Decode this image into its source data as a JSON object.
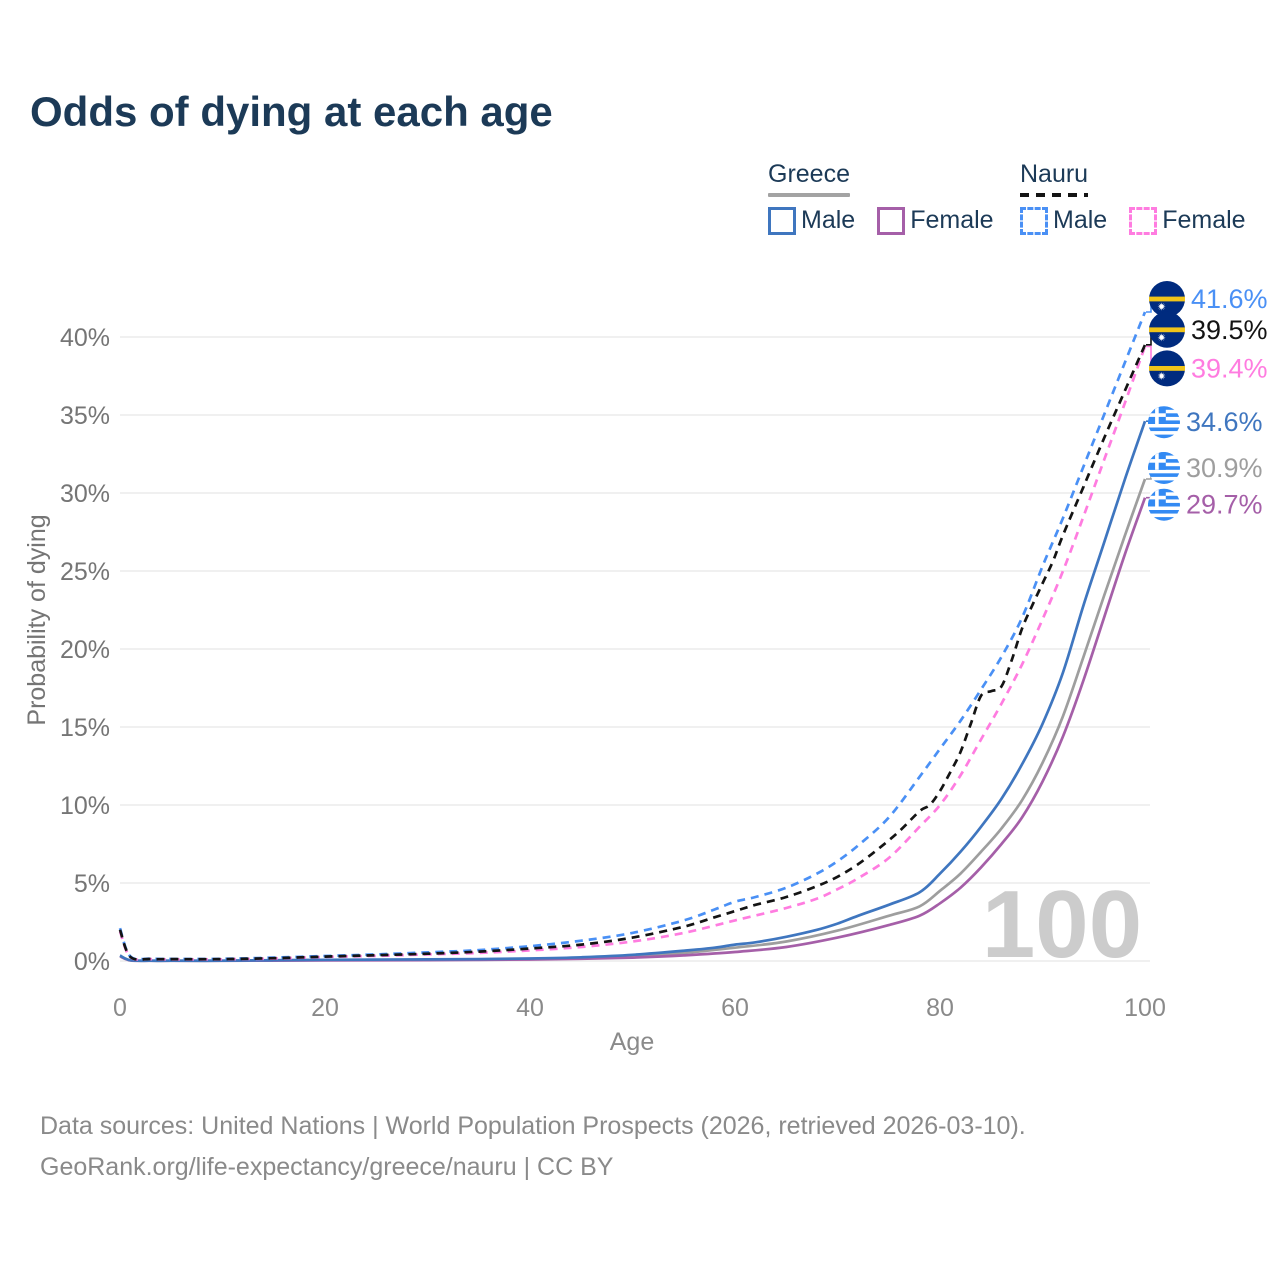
{
  "title": "Odds of dying at each age",
  "watermark": "100",
  "legend": {
    "groups": [
      {
        "label": "Greece",
        "underline_style": "solid",
        "underline_color": "#a3a3a3",
        "items": [
          {
            "label": "Male",
            "color": "#3f76bf",
            "dash": false
          },
          {
            "label": "Female",
            "color": "#a55fa8",
            "dash": false
          }
        ]
      },
      {
        "label": "Nauru",
        "underline_style": "dashed",
        "underline_color": "#141414",
        "items": [
          {
            "label": "Male",
            "color": "#4a90f5",
            "dash": true
          },
          {
            "label": "Female",
            "color": "#ff7ce0",
            "dash": true
          }
        ]
      }
    ]
  },
  "footer": {
    "line1": "Data sources: United Nations | World Population Prospects (2026, retrieved 2026-03-10).",
    "line2": "GeoRank.org/life-expectancy/greece/nauru | CC BY"
  },
  "chart_data": {
    "type": "line",
    "title": "Odds of dying at each age",
    "xlabel": "Age",
    "ylabel": "Probability of dying",
    "xlim": [
      0,
      100
    ],
    "ylim_percent": [
      0,
      43
    ],
    "grid": true,
    "legend_position": "top-right",
    "x_ticks": [
      0,
      20,
      40,
      60,
      80,
      100
    ],
    "y_ticks": [
      {
        "v": 0,
        "label": "0%"
      },
      {
        "v": 5,
        "label": "5%"
      },
      {
        "v": 10,
        "label": "10%"
      },
      {
        "v": 15,
        "label": "15%"
      },
      {
        "v": 20,
        "label": "20%"
      },
      {
        "v": 25,
        "label": "25%"
      },
      {
        "v": 30,
        "label": "30%"
      },
      {
        "v": 35,
        "label": "35%"
      },
      {
        "v": 40,
        "label": "40%"
      }
    ],
    "series": [
      {
        "id": "greece-combined",
        "name": "Greece (both sexes)",
        "color": "#9e9e9e",
        "dash": false,
        "end_label": "30.9%",
        "flag": "greece",
        "points": [
          [
            0,
            0.33
          ],
          [
            1,
            0.045
          ],
          [
            3,
            0.018
          ],
          [
            5,
            0.018
          ],
          [
            10,
            0.018
          ],
          [
            15,
            0.04
          ],
          [
            20,
            0.06
          ],
          [
            25,
            0.07
          ],
          [
            30,
            0.08
          ],
          [
            35,
            0.1
          ],
          [
            40,
            0.13
          ],
          [
            45,
            0.19
          ],
          [
            50,
            0.31
          ],
          [
            55,
            0.52
          ],
          [
            60,
            0.85
          ],
          [
            65,
            1.25
          ],
          [
            70,
            1.95
          ],
          [
            75,
            2.9
          ],
          [
            78,
            3.5
          ],
          [
            80,
            4.5
          ],
          [
            82,
            5.6
          ],
          [
            84,
            7.0
          ],
          [
            86,
            8.5
          ],
          [
            88,
            10.3
          ],
          [
            90,
            12.7
          ],
          [
            92,
            15.7
          ],
          [
            94,
            19.5
          ],
          [
            96,
            23.4
          ],
          [
            98,
            27.2
          ],
          [
            100,
            30.9
          ]
        ]
      },
      {
        "id": "greece-female",
        "name": "Greece Female",
        "color": "#a55fa8",
        "dash": false,
        "end_label": "29.7%",
        "flag": "greece",
        "points": [
          [
            0,
            0.3
          ],
          [
            1,
            0.04
          ],
          [
            3,
            0.015
          ],
          [
            5,
            0.015
          ],
          [
            10,
            0.015
          ],
          [
            15,
            0.025
          ],
          [
            20,
            0.04
          ],
          [
            25,
            0.045
          ],
          [
            30,
            0.055
          ],
          [
            35,
            0.07
          ],
          [
            40,
            0.095
          ],
          [
            45,
            0.14
          ],
          [
            50,
            0.22
          ],
          [
            55,
            0.36
          ],
          [
            60,
            0.58
          ],
          [
            65,
            0.9
          ],
          [
            70,
            1.5
          ],
          [
            75,
            2.3
          ],
          [
            78,
            2.9
          ],
          [
            80,
            3.7
          ],
          [
            82,
            4.7
          ],
          [
            84,
            6.0
          ],
          [
            86,
            7.5
          ],
          [
            88,
            9.2
          ],
          [
            90,
            11.5
          ],
          [
            92,
            14.4
          ],
          [
            94,
            18.0
          ],
          [
            96,
            22.0
          ],
          [
            98,
            26.0
          ],
          [
            100,
            29.7
          ]
        ]
      },
      {
        "id": "greece-male",
        "name": "Greece Male",
        "color": "#3f76bf",
        "dash": false,
        "end_label": "34.6%",
        "flag": "greece",
        "points": [
          [
            0,
            0.35
          ],
          [
            1,
            0.05
          ],
          [
            3,
            0.02
          ],
          [
            5,
            0.02
          ],
          [
            10,
            0.02
          ],
          [
            15,
            0.05
          ],
          [
            20,
            0.08
          ],
          [
            25,
            0.09
          ],
          [
            30,
            0.1
          ],
          [
            35,
            0.12
          ],
          [
            40,
            0.16
          ],
          [
            45,
            0.24
          ],
          [
            50,
            0.4
          ],
          [
            55,
            0.66
          ],
          [
            58,
            0.85
          ],
          [
            60,
            1.05
          ],
          [
            62,
            1.2
          ],
          [
            65,
            1.55
          ],
          [
            68,
            2.0
          ],
          [
            70,
            2.4
          ],
          [
            72,
            2.9
          ],
          [
            75,
            3.6
          ],
          [
            78,
            4.4
          ],
          [
            80,
            5.6
          ],
          [
            82,
            7.0
          ],
          [
            84,
            8.6
          ],
          [
            86,
            10.4
          ],
          [
            88,
            12.6
          ],
          [
            90,
            15.2
          ],
          [
            92,
            18.5
          ],
          [
            94,
            22.8
          ],
          [
            96,
            26.8
          ],
          [
            98,
            30.8
          ],
          [
            100,
            34.6
          ]
        ]
      },
      {
        "id": "nauru-female",
        "name": "Nauru Female",
        "color": "#ff7ce0",
        "dash": true,
        "end_label": "39.4%",
        "flag": "nauru",
        "points": [
          [
            0,
            1.9
          ],
          [
            1,
            0.25
          ],
          [
            3,
            0.12
          ],
          [
            5,
            0.1
          ],
          [
            10,
            0.11
          ],
          [
            15,
            0.16
          ],
          [
            20,
            0.26
          ],
          [
            25,
            0.33
          ],
          [
            30,
            0.42
          ],
          [
            35,
            0.52
          ],
          [
            40,
            0.68
          ],
          [
            45,
            0.9
          ],
          [
            50,
            1.25
          ],
          [
            55,
            1.8
          ],
          [
            60,
            2.6
          ],
          [
            65,
            3.4
          ],
          [
            68,
            4.0
          ],
          [
            70,
            4.6
          ],
          [
            72,
            5.3
          ],
          [
            75,
            6.6
          ],
          [
            78,
            8.6
          ],
          [
            80,
            10.0
          ],
          [
            82,
            11.9
          ],
          [
            84,
            14.2
          ],
          [
            86,
            16.5
          ],
          [
            88,
            19.0
          ],
          [
            90,
            21.9
          ],
          [
            92,
            25.0
          ],
          [
            94,
            28.5
          ],
          [
            96,
            32.1
          ],
          [
            98,
            35.7
          ],
          [
            100,
            39.4
          ]
        ]
      },
      {
        "id": "nauru-male",
        "name": "Nauru Male",
        "color": "#4a90f5",
        "dash": true,
        "end_label": "41.6%",
        "flag": "nauru",
        "points": [
          [
            0,
            2.1
          ],
          [
            1,
            0.3
          ],
          [
            3,
            0.15
          ],
          [
            5,
            0.13
          ],
          [
            10,
            0.14
          ],
          [
            15,
            0.22
          ],
          [
            20,
            0.32
          ],
          [
            25,
            0.42
          ],
          [
            30,
            0.55
          ],
          [
            35,
            0.7
          ],
          [
            40,
            0.95
          ],
          [
            45,
            1.3
          ],
          [
            50,
            1.8
          ],
          [
            55,
            2.6
          ],
          [
            58,
            3.3
          ],
          [
            60,
            3.8
          ],
          [
            62,
            4.1
          ],
          [
            65,
            4.7
          ],
          [
            68,
            5.6
          ],
          [
            70,
            6.4
          ],
          [
            72,
            7.4
          ],
          [
            75,
            9.2
          ],
          [
            78,
            11.8
          ],
          [
            80,
            13.6
          ],
          [
            82,
            15.4
          ],
          [
            84,
            17.4
          ],
          [
            86,
            19.5
          ],
          [
            88,
            22.0
          ],
          [
            90,
            25.3
          ],
          [
            92,
            28.4
          ],
          [
            94,
            31.7
          ],
          [
            96,
            35.0
          ],
          [
            98,
            38.3
          ],
          [
            100,
            41.6
          ]
        ]
      },
      {
        "id": "nauru-combined",
        "name": "Nauru (both sexes)",
        "color": "#141414",
        "dash": true,
        "end_label": "39.5%",
        "flag": "nauru",
        "points": [
          [
            0,
            2.0
          ],
          [
            1,
            0.27
          ],
          [
            3,
            0.13
          ],
          [
            5,
            0.12
          ],
          [
            10,
            0.12
          ],
          [
            15,
            0.18
          ],
          [
            20,
            0.28
          ],
          [
            25,
            0.37
          ],
          [
            30,
            0.47
          ],
          [
            35,
            0.6
          ],
          [
            40,
            0.8
          ],
          [
            45,
            1.05
          ],
          [
            50,
            1.5
          ],
          [
            55,
            2.2
          ],
          [
            58,
            2.8
          ],
          [
            60,
            3.2
          ],
          [
            62,
            3.6
          ],
          [
            65,
            4.1
          ],
          [
            68,
            4.8
          ],
          [
            70,
            5.4
          ],
          [
            72,
            6.2
          ],
          [
            74,
            7.2
          ],
          [
            76,
            8.3
          ],
          [
            78,
            9.6
          ],
          [
            79,
            10.0
          ],
          [
            80,
            10.9
          ],
          [
            81,
            12.1
          ],
          [
            82,
            13.4
          ],
          [
            83,
            15.2
          ],
          [
            84,
            17.0
          ],
          [
            85,
            17.3
          ],
          [
            86,
            17.6
          ],
          [
            87,
            19.3
          ],
          [
            88,
            21.3
          ],
          [
            89,
            22.8
          ],
          [
            90,
            24.2
          ],
          [
            91,
            25.6
          ],
          [
            92,
            27.3
          ],
          [
            94,
            30.4
          ],
          [
            96,
            33.5
          ],
          [
            98,
            36.5
          ],
          [
            100,
            39.5
          ]
        ]
      }
    ]
  }
}
